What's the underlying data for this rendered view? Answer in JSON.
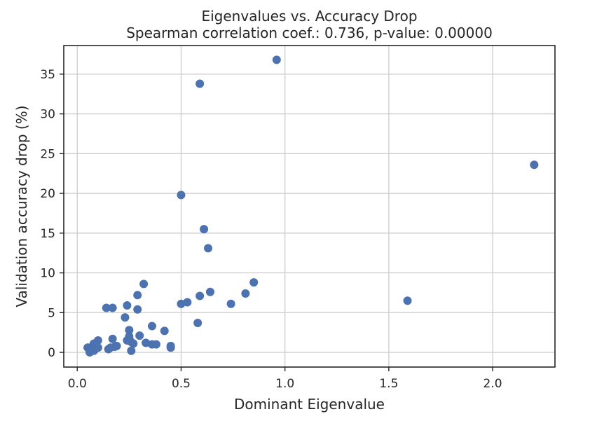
{
  "chart_data": {
    "type": "scatter",
    "title": "Eigenvalues vs. Accuracy Drop",
    "subtitle": "Spearman correlation coef.: 0.736, p-value: 0.00000",
    "xlabel": "Dominant Eigenvalue",
    "ylabel": "Validation accuracy drop (%)",
    "xlim": [
      -0.065,
      2.3
    ],
    "ylim": [
      -1.85,
      38.6
    ],
    "xticks": [
      0.0,
      0.5,
      1.0,
      1.5,
      2.0
    ],
    "xtick_labels": [
      "0.0",
      "0.5",
      "1.0",
      "1.5",
      "2.0"
    ],
    "yticks": [
      0,
      5,
      10,
      15,
      20,
      25,
      30,
      35
    ],
    "ytick_labels": [
      "0",
      "5",
      "10",
      "15",
      "20",
      "25",
      "30",
      "35"
    ],
    "grid": true,
    "point_color": "#4c72b0",
    "points": [
      [
        0.96,
        36.8
      ],
      [
        0.59,
        33.8
      ],
      [
        2.2,
        23.6
      ],
      [
        0.5,
        19.8
      ],
      [
        0.61,
        15.5
      ],
      [
        0.63,
        13.1
      ],
      [
        0.85,
        8.8
      ],
      [
        0.32,
        8.6
      ],
      [
        0.64,
        7.6
      ],
      [
        0.81,
        7.4
      ],
      [
        0.29,
        7.2
      ],
      [
        0.59,
        7.1
      ],
      [
        1.59,
        6.5
      ],
      [
        0.53,
        6.3
      ],
      [
        0.5,
        6.1
      ],
      [
        0.74,
        6.1
      ],
      [
        0.24,
        5.9
      ],
      [
        0.14,
        5.6
      ],
      [
        0.17,
        5.6
      ],
      [
        0.29,
        5.4
      ],
      [
        0.23,
        4.4
      ],
      [
        0.58,
        3.7
      ],
      [
        0.36,
        3.3
      ],
      [
        0.25,
        2.8
      ],
      [
        0.42,
        2.7
      ],
      [
        0.25,
        2.0
      ],
      [
        0.3,
        2.1
      ],
      [
        0.17,
        1.7
      ],
      [
        0.24,
        1.5
      ],
      [
        0.1,
        1.5
      ],
      [
        0.33,
        1.2
      ],
      [
        0.27,
        1.1
      ],
      [
        0.36,
        1.0
      ],
      [
        0.38,
        1.0
      ],
      [
        0.26,
        1.3
      ],
      [
        0.08,
        1.1
      ],
      [
        0.45,
        0.8
      ],
      [
        0.45,
        0.6
      ],
      [
        0.18,
        0.7
      ],
      [
        0.19,
        0.8
      ],
      [
        0.16,
        0.6
      ],
      [
        0.15,
        0.4
      ],
      [
        0.1,
        0.6
      ],
      [
        0.07,
        0.7
      ],
      [
        0.05,
        0.6
      ],
      [
        0.06,
        0.3
      ],
      [
        0.08,
        0.2
      ],
      [
        0.06,
        0.0
      ],
      [
        0.26,
        0.2
      ]
    ]
  }
}
